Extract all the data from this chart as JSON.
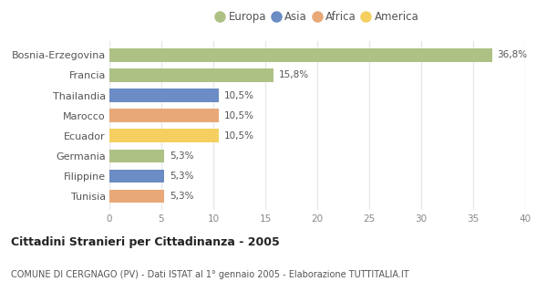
{
  "categories": [
    "Bosnia-Erzegovina",
    "Francia",
    "Thailandia",
    "Marocco",
    "Ecuador",
    "Germania",
    "Filippine",
    "Tunisia"
  ],
  "values": [
    36.8,
    15.8,
    10.5,
    10.5,
    10.5,
    5.3,
    5.3,
    5.3
  ],
  "labels": [
    "36,8%",
    "15,8%",
    "10,5%",
    "10,5%",
    "10,5%",
    "5,3%",
    "5,3%",
    "5,3%"
  ],
  "colors": [
    "#adc185",
    "#adc185",
    "#6b8cc4",
    "#e8a878",
    "#f5d060",
    "#adc185",
    "#6b8cc4",
    "#e8a878"
  ],
  "legend": {
    "Europa": "#adc185",
    "Asia": "#6b8cc4",
    "Africa": "#e8a878",
    "America": "#f5d060"
  },
  "xlim": [
    0,
    40
  ],
  "xticks": [
    0,
    5,
    10,
    15,
    20,
    25,
    30,
    35,
    40
  ],
  "title": "Cittadini Stranieri per Cittadinanza - 2005",
  "subtitle": "COMUNE DI CERGNAGO (PV) - Dati ISTAT al 1° gennaio 2005 - Elaborazione TUTTITALIA.IT",
  "background_color": "#ffffff",
  "plot_bg_color": "#ffffff",
  "grid_color": "#e8e8e8",
  "bar_height": 0.65,
  "label_color": "#555555",
  "tick_color": "#888888"
}
